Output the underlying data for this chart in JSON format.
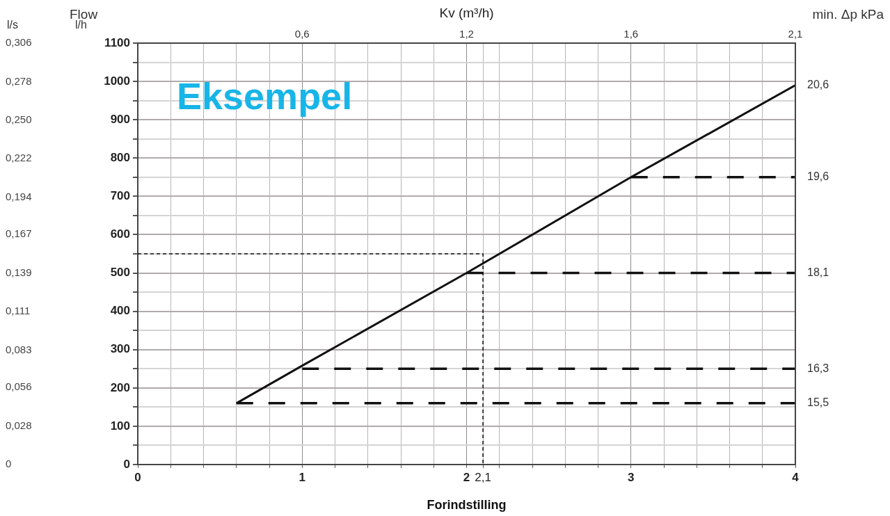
{
  "chart_data": {
    "type": "line",
    "xlabel": "Forindstilling",
    "ylabel": "l/h",
    "y2label": "l/s",
    "marker": "none",
    "grid": true,
    "annotations": [
      "Flow",
      "Eksempel",
      "min. Δp kPa",
      "Kv (m³/h)",
      "0,6",
      "1,2",
      "1,6",
      "2,1"
    ],
    "xlim": [
      0,
      4
    ],
    "xticks": [
      0,
      {
        "value": 0.2,
        "label": null
      },
      {
        "value": 0.4,
        "label": null
      },
      {
        "value": 0.6,
        "label": null
      },
      {
        "value": 0.8,
        "label": null
      },
      1,
      {
        "value": 1.2,
        "label": null
      },
      {
        "value": 1.4,
        "label": null
      },
      {
        "value": 1.6,
        "label": null
      },
      {
        "value": 1.8,
        "label": null
      },
      2,
      {
        "value": 2.1,
        "label": "2,1"
      },
      {
        "value": 2.2,
        "label": null
      },
      {
        "value": 2.4,
        "label": null
      },
      {
        "value": 2.6,
        "label": null
      },
      {
        "value": 2.8,
        "label": null
      },
      3,
      {
        "value": 3.2,
        "label": null
      },
      {
        "value": 3.4,
        "label": null
      },
      {
        "value": 3.6,
        "label": null
      },
      {
        "value": 3.8,
        "label": null
      },
      4
    ],
    "ylim": [
      0,
      1100
    ],
    "yticks": [
      0,
      {
        "value": 50,
        "label": null
      },
      100,
      {
        "value": 150,
        "label": null
      },
      200,
      {
        "value": 250,
        "label": null
      },
      300,
      {
        "value": 350,
        "label": null
      },
      400,
      {
        "value": 450,
        "label": null
      },
      500,
      {
        "value": 550,
        "label": null
      },
      600,
      {
        "value": 650,
        "label": null
      },
      700,
      {
        "value": 750,
        "label": null
      },
      800,
      {
        "value": 850,
        "label": null
      },
      900,
      {
        "value": 950,
        "label": null
      },
      1000,
      {
        "value": 1050,
        "label": null
      },
      1100
    ],
    "y2lim": [
      0,
      0.306
    ],
    "y2ticks": [
      0,
      {
        "value": 0.028,
        "label": "0,028"
      },
      {
        "value": 0.056,
        "label": "0,056"
      },
      {
        "value": 0.083,
        "label": "0,083"
      },
      {
        "value": 0.111,
        "label": "0,111"
      },
      {
        "value": 0.139,
        "label": "0,139"
      },
      {
        "value": 0.167,
        "label": "0,167"
      },
      {
        "value": 0.194,
        "label": "0,194"
      },
      {
        "value": 0.222,
        "label": "0,222"
      },
      {
        "value": 0.25,
        "label": "0,250"
      },
      {
        "value": 0.278,
        "label": "0,278"
      },
      {
        "value": 0.306,
        "label": "0,306"
      }
    ],
    "series": [
      {
        "name": "20,6",
        "x": [
          0.6,
          1,
          2,
          3,
          4
        ],
        "values": [
          160,
          258,
          500,
          750,
          990
        ],
        "color": "#111111",
        "line_style": "solid"
      },
      {
        "name": "15,5",
        "x": [
          0.6,
          4
        ],
        "values": [
          160,
          160
        ],
        "color": "#111111",
        "line_style": "dashed"
      },
      {
        "name": "16,3",
        "x": [
          1,
          4
        ],
        "values": [
          250,
          250
        ],
        "color": "#111111",
        "line_style": "dashed"
      },
      {
        "name": "18,1",
        "x": [
          2,
          4
        ],
        "values": [
          500,
          500
        ],
        "color": "#111111",
        "line_style": "dashed"
      },
      {
        "name": "19,6",
        "x": [
          3,
          4
        ],
        "values": [
          750,
          750
        ],
        "color": "#111111",
        "line_style": "dashed"
      },
      {
        "x": [
          0,
          2.1,
          2.1
        ],
        "values": [
          550,
          550,
          0
        ],
        "color": "#111111",
        "line_style": "dotted"
      }
    ]
  }
}
